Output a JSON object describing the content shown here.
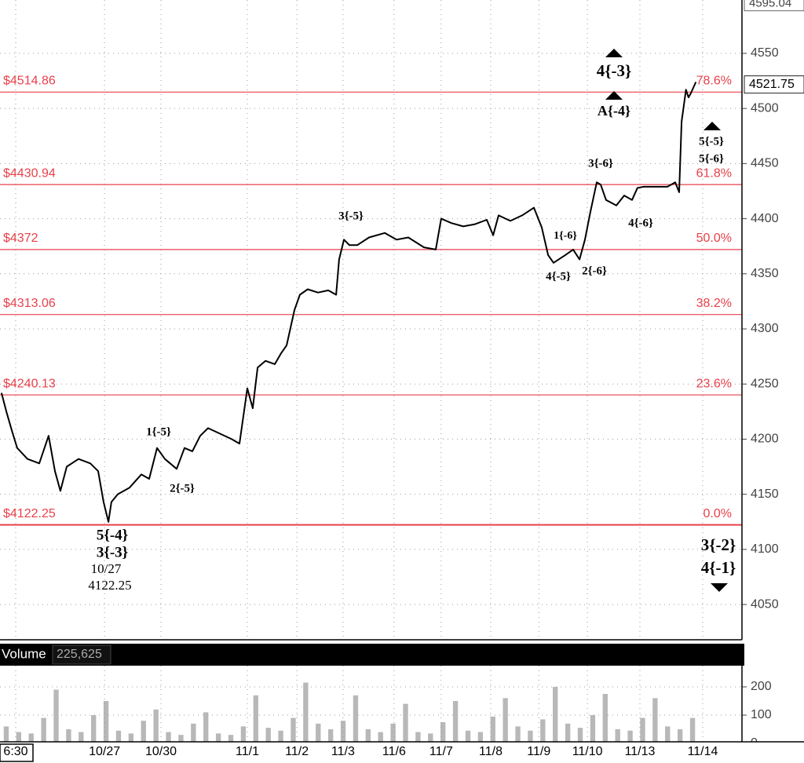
{
  "chart_data": [
    {
      "type": "line",
      "x": [
        -0.68,
        -0.58,
        -0.47,
        -0.36,
        -0.15,
        0.09,
        0.28,
        0.41,
        0.52,
        0.65,
        0.89,
        1.13,
        1.29,
        1.4,
        1.5,
        1.56,
        1.69,
        1.93,
        2.17,
        2.33,
        2.49,
        2.65,
        2.89,
        3.05,
        3.21,
        3.37,
        3.53,
        3.77,
        4.01,
        4.17,
        4.33,
        4.44,
        4.54,
        4.7,
        4.89,
        5.02,
        5.13,
        5.29,
        5.4,
        5.56,
        5.77,
        5.98,
        6.14,
        6.2,
        6.3,
        6.41,
        6.57,
        6.81,
        7.13,
        7.37,
        7.61,
        7.93,
        8.17,
        8.28,
        8.49,
        8.73,
        8.97,
        9.21,
        9.34,
        9.45,
        9.69,
        9.93,
        10.17,
        10.33,
        10.46,
        10.57,
        10.81,
        10.97,
        11.1,
        11.21,
        11.32,
        11.45,
        11.53,
        11.64,
        11.85,
        12.01,
        12.17,
        12.28,
        12.41,
        12.65,
        12.89,
        13.05,
        13.13,
        13.18,
        13.27,
        13.32,
        13.37,
        13.47
      ],
      "values": [
        4242,
        4225,
        4208,
        4192,
        4182,
        4178,
        4203,
        4171,
        4153,
        4175,
        4182,
        4178,
        4171,
        4143,
        4125,
        4143,
        4150,
        4156,
        4168,
        4164,
        4192,
        4182,
        4173,
        4192,
        4189,
        4203,
        4210,
        4205,
        4200,
        4196,
        4246,
        4228,
        4265,
        4271,
        4268,
        4278,
        4285,
        4317,
        4331,
        4336,
        4333,
        4335,
        4331,
        4363,
        4381,
        4376,
        4376,
        4383,
        4387,
        4381,
        4383,
        4374,
        4372,
        4400,
        4396,
        4393,
        4395,
        4399,
        4385,
        4403,
        4398,
        4403,
        4410,
        4392,
        4367,
        4360,
        4367,
        4372,
        4363,
        4381,
        4406,
        4433,
        4431,
        4417,
        4412,
        4421,
        4417,
        4428,
        4429,
        4429,
        4429,
        4433,
        4424,
        4488,
        4517,
        4510,
        4514,
        4524
      ],
      "xlim": [
        -0.71,
        14.41
      ],
      "xticks": [
        {
          "value": -0.39,
          "label": "6:30"
        },
        {
          "value": 1.42,
          "label": "10/27"
        },
        {
          "value": 2.57,
          "label": "10/30"
        },
        {
          "value": 4.33,
          "label": "11/1"
        },
        {
          "value": 5.34,
          "label": "11/2"
        },
        {
          "value": 6.28,
          "label": "11/3"
        },
        {
          "value": 7.32,
          "label": "11/6"
        },
        {
          "value": 8.28,
          "label": "11/7"
        },
        {
          "value": 9.29,
          "label": "11/8"
        },
        {
          "value": 10.27,
          "label": "11/9"
        },
        {
          "value": 11.26,
          "label": "11/10"
        },
        {
          "value": 12.33,
          "label": "11/13"
        },
        {
          "value": 13.61,
          "label": "11/14"
        }
      ],
      "ylim": [
        4018,
        4598.4
      ],
      "yticks": [
        4050,
        4100,
        4150,
        4200,
        4250,
        4300,
        4350,
        4400,
        4450,
        4500,
        4550
      ],
      "grid": true,
      "color": "#000000",
      "level_color": "#e8414b",
      "levels": [
        {
          "value": 4122.25,
          "label": "$4122.25",
          "percent": {
            "value": 0.0,
            "label": "0.0%"
          }
        },
        {
          "value": 4240.13,
          "label": "$4240.13",
          "percent": {
            "value": 23.6,
            "label": "23.6%"
          }
        },
        {
          "value": 4313.06,
          "label": "$4313.06",
          "percent": {
            "value": 38.2,
            "label": "38.2%"
          }
        },
        {
          "value": 4372,
          "label": "$4372",
          "percent": {
            "value": 50.0,
            "label": "50.0%"
          }
        },
        {
          "value": 4430.94,
          "label": "$4430.94",
          "percent": {
            "value": 61.8,
            "label": "61.8%"
          }
        },
        {
          "value": 4514.86,
          "label": "$4514.86",
          "percent": {
            "value": 78.6,
            "label": "78.6%"
          }
        }
      ],
      "top_price": 4595.04,
      "last_price": 4521.75,
      "annotations": [
        "4{-3}",
        "A{-4}",
        "5{-5}",
        "5{-6}",
        "3{-6}",
        "3{-5}",
        "1{-6}",
        "2{-6}",
        "4{-5}",
        "4{-6}",
        "1{-5}",
        "2{-5}",
        "5{-4}",
        "3{-3}",
        "10/27",
        "4122.25",
        "3{-2}",
        "4{-1}"
      ]
    },
    {
      "type": "bar",
      "title": "Volume",
      "total": {
        "value": 225625,
        "label": "225,625"
      },
      "values": [
        60,
        40,
        35,
        90,
        190,
        50,
        40,
        100,
        150,
        45,
        35,
        80,
        120,
        40,
        30,
        70,
        110,
        35,
        30,
        60,
        170,
        55,
        45,
        90,
        215,
        70,
        50,
        80,
        170,
        50,
        40,
        70,
        140,
        40,
        35,
        75,
        150,
        45,
        40,
        95,
        160,
        60,
        45,
        85,
        200,
        70,
        55,
        100,
        175,
        50,
        45,
        90,
        160,
        60,
        50,
        90
      ],
      "ylim": [
        0,
        275
      ],
      "yticks": [
        0,
        100,
        200
      ],
      "color": "#b8b8b8"
    }
  ]
}
